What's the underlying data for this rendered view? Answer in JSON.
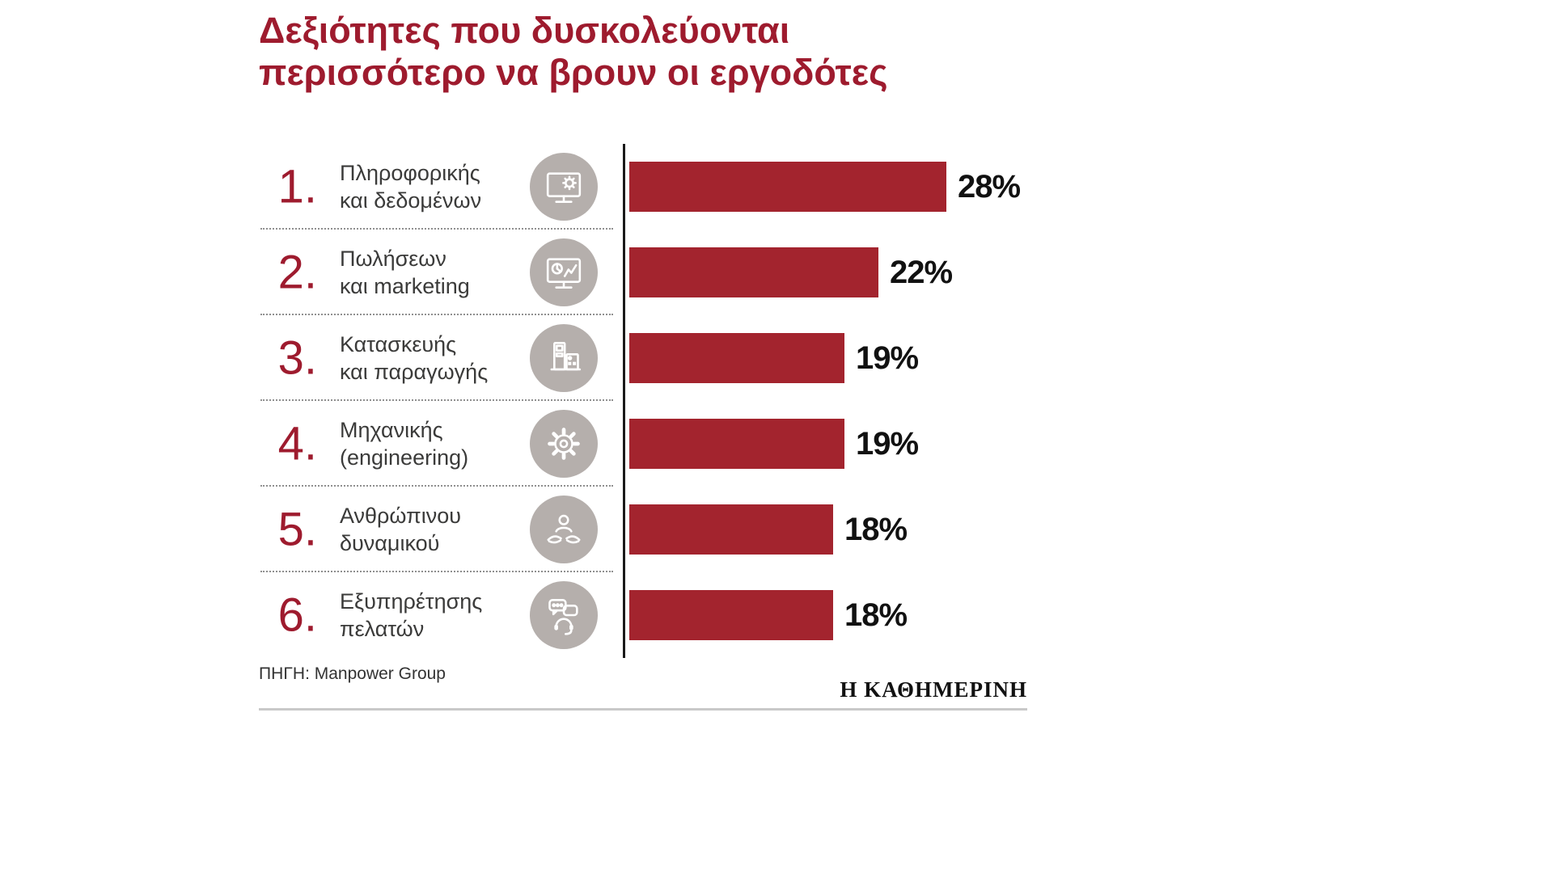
{
  "header": {
    "title_line1": "Δεξιότητες που δυσκολεύονται",
    "title_line2": "περισσότερο να βρουν οι εργοδότες"
  },
  "footer": {
    "source": "ΠΗΓΗ: Manpower Group",
    "brand": "Η ΚΑΘΗΜΕΡΙΝΗ"
  },
  "colors": {
    "title": "#9E1B2E",
    "bar": "#A3242E",
    "icon_bg": "#B5AFAC",
    "label_text": "#3B3B3A",
    "percent_text": "#111111",
    "axis": "#1A1A1A",
    "separator": "#8F8F8F",
    "rule": "#C9C9C9"
  },
  "chart_data": {
    "type": "bar",
    "orientation": "horizontal",
    "title": "Δεξιότητες που δυσκολεύονται περισσότερο να βρουν οι εργοδότες",
    "source": "Manpower Group",
    "value_suffix": "%",
    "xlim": [
      0,
      28
    ],
    "categories": [
      "Πληροφορικής και δεδομένων",
      "Πωλήσεων και marketing",
      "Κατασκευής και παραγωγής",
      "Μηχανικής (engineering)",
      "Ανθρώπινου δυναμικού",
      "Εξυπηρέτησης πελατών"
    ],
    "values": [
      28,
      22,
      19,
      19,
      18,
      18
    ],
    "rows": [
      {
        "rank": "1.",
        "label_line1": "Πληροφορικής",
        "label_line2": "και δεδομένων",
        "icon": "computer-gear-icon",
        "value": 28,
        "value_label": "28%"
      },
      {
        "rank": "2.",
        "label_line1": "Πωλήσεων",
        "label_line2": "και marketing",
        "icon": "computer-chart-icon",
        "value": 22,
        "value_label": "22%"
      },
      {
        "rank": "3.",
        "label_line1": "Κατασκευής",
        "label_line2": "και παραγωγής",
        "icon": "factory-machines-icon",
        "value": 19,
        "value_label": "19%"
      },
      {
        "rank": "4.",
        "label_line1": "Μηχανικής",
        "label_line2": "(engineering)",
        "icon": "gear-icon",
        "value": 19,
        "value_label": "19%"
      },
      {
        "rank": "5.",
        "label_line1": "Ανθρώπινου",
        "label_line2": "δυναμικού",
        "icon": "person-hands-icon",
        "value": 18,
        "value_label": "18%"
      },
      {
        "rank": "6.",
        "label_line1": "Εξυπηρέτησης",
        "label_line2": "πελατών",
        "icon": "chat-headset-icon",
        "value": 18,
        "value_label": "18%"
      }
    ]
  }
}
